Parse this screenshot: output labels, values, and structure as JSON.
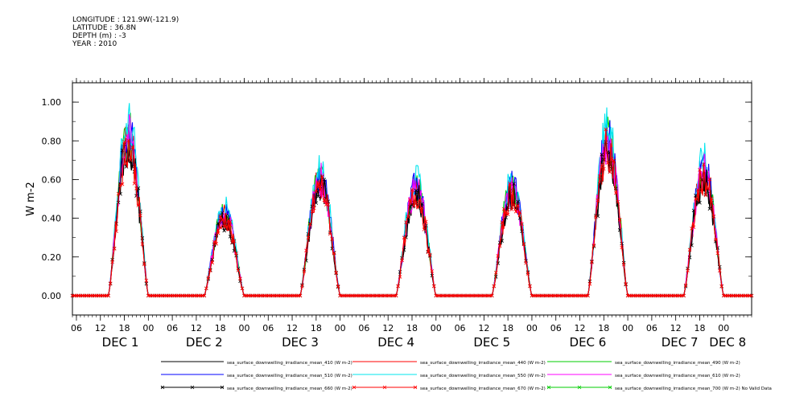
{
  "header": {
    "longitude": "LONGITUDE : 121.9W(-121.9)",
    "latitude": "LATITUDE : 36.8N",
    "depth": "DEPTH (m) : -3",
    "year": "YEAR : 2010"
  },
  "chart_data": {
    "type": "line",
    "title": "",
    "ylabel": "W m-2",
    "xlabel": "",
    "ylim": [
      -0.1,
      1.1
    ],
    "yticks": [
      0.0,
      0.2,
      0.4,
      0.6,
      0.8,
      1.0
    ],
    "ytick_labels": [
      "0.00",
      "0.20",
      "0.40",
      "0.60",
      "0.80",
      "1.00"
    ],
    "xlim_hours": [
      0,
      170
    ],
    "hour_tick_labels": [
      "06",
      "12",
      "18",
      "00",
      "06",
      "12",
      "18",
      "00",
      "06",
      "12",
      "18",
      "00",
      "06",
      "12",
      "18",
      "00",
      "06",
      "12",
      "18",
      "00",
      "06",
      "12",
      "18",
      "00",
      "06",
      "12",
      "18",
      "00"
    ],
    "day_labels": [
      {
        "label": "DEC 1",
        "hour": 12
      },
      {
        "label": "DEC 2",
        "hour": 33
      },
      {
        "label": "DEC 3",
        "hour": 57
      },
      {
        "label": "DEC 4",
        "hour": 81
      },
      {
        "label": "DEC 5",
        "hour": 105
      },
      {
        "label": "DEC 6",
        "hour": 129
      },
      {
        "label": "DEC 7",
        "hour": 152
      },
      {
        "label": "DEC 8",
        "hour": 164
      }
    ],
    "day_peaks": [
      {
        "start": 9,
        "end": 19,
        "peak": 0.82
      },
      {
        "start": 33,
        "end": 43,
        "peak": 0.42
      },
      {
        "start": 57,
        "end": 67,
        "peak": 0.6
      },
      {
        "start": 81,
        "end": 91,
        "peak": 0.55
      },
      {
        "start": 105,
        "end": 115,
        "peak": 0.55
      },
      {
        "start": 129,
        "end": 139,
        "peak": 0.8
      },
      {
        "start": 153,
        "end": 163,
        "peak": 0.64
      }
    ],
    "series": [
      {
        "name": "sea_surface_downwelling_irradiance_mean_410 (W m-2)",
        "color": "#000000",
        "scale": 0.96,
        "marker": "none"
      },
      {
        "name": "sea_surface_downwelling_irradiance_mean_440 (W m-2)",
        "color": "#ff0000",
        "scale": 0.98,
        "marker": "none"
      },
      {
        "name": "sea_surface_downwelling_irradiance_mean_490 (W m-2)",
        "color": "#00cc00",
        "scale": 1.02,
        "marker": "none"
      },
      {
        "name": "sea_surface_downwelling_irradiance_mean_510 (W m-2)",
        "color": "#0000ff",
        "scale": 1.03,
        "marker": "none"
      },
      {
        "name": "sea_surface_downwelling_irradiance_mean_550 (W m-2)",
        "color": "#00e5ee",
        "scale": 1.08,
        "marker": "none"
      },
      {
        "name": "sea_surface_downwelling_irradiance_mean_610 (W m-2)",
        "color": "#ff00ff",
        "scale": 1.0,
        "marker": "none"
      },
      {
        "name": "sea_surface_downwelling_irradiance_mean_660 (W m-2)",
        "color": "#000000",
        "scale": 0.94,
        "marker": "x"
      },
      {
        "name": "sea_surface_downwelling_irradiance_mean_670 (W m-2)",
        "color": "#ff0000",
        "scale": 0.95,
        "marker": "x"
      },
      {
        "name": "sea_surface_downwelling_irradiance_mean_700 (W m-2) No Valid Data",
        "color": "#00cc00",
        "scale": 0.0,
        "marker": "x"
      }
    ],
    "grid": false
  }
}
